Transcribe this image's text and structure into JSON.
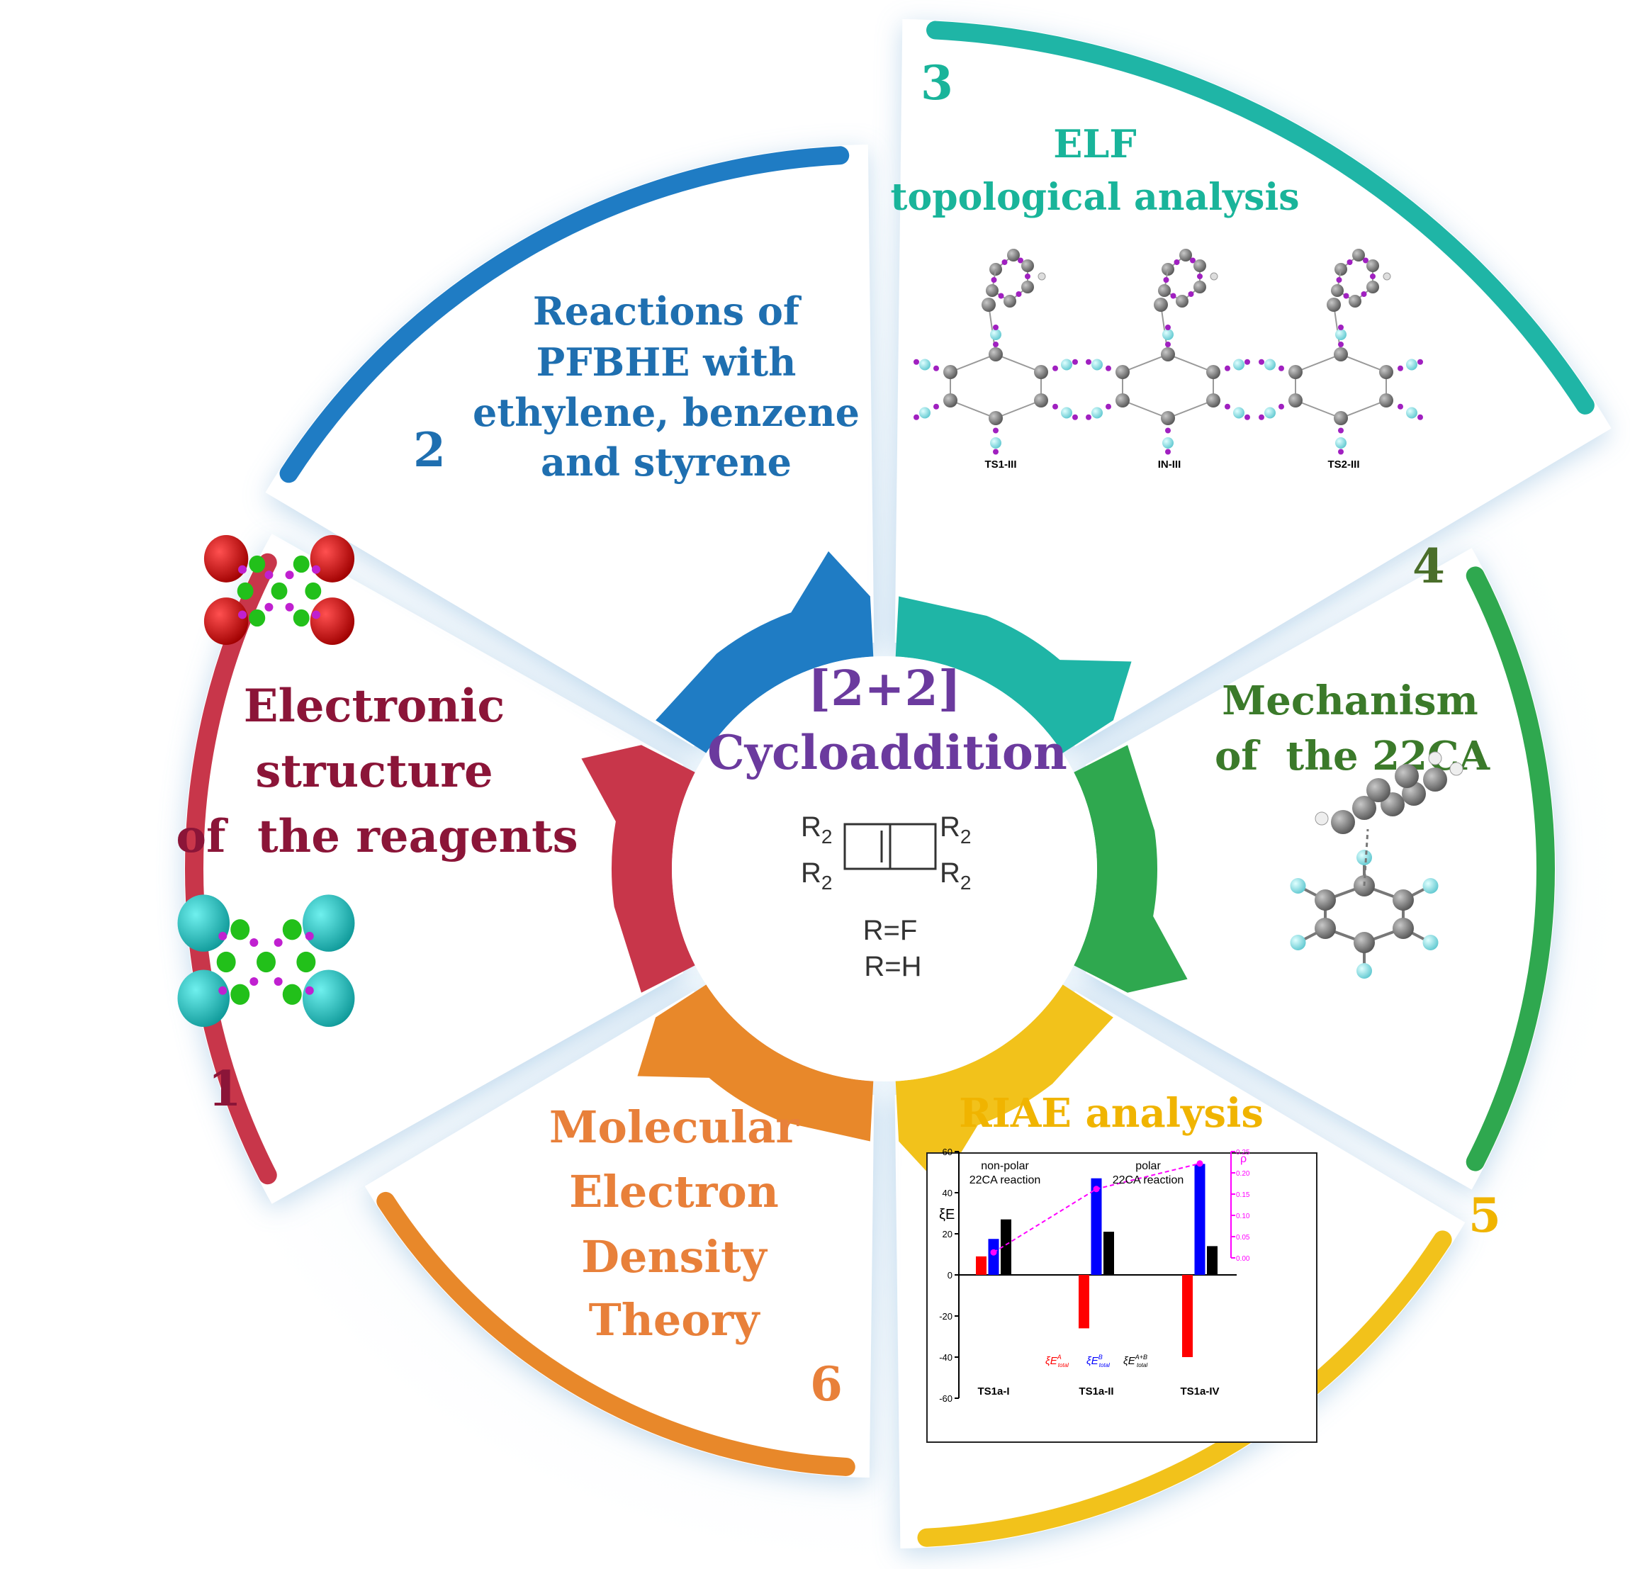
{
  "center": {
    "title_line1": "[2+2]",
    "title_line2": "Cycloaddition",
    "substituent_label": "R",
    "substituent_subscript": "2",
    "variants": [
      "R=F",
      "R=H"
    ],
    "title_color": "#6b3a9e"
  },
  "sectors": [
    {
      "number": "1",
      "lines": [
        "Electronic",
        "structure",
        "of  the reagents"
      ],
      "color": "#c8364a",
      "text_color": "#8b1538"
    },
    {
      "number": "2",
      "lines": [
        "Reactions of",
        "PFBHE with",
        "ethylene, benzene",
        "and styrene"
      ],
      "color": "#1f7cc4",
      "text_color": "#1f6fb0"
    },
    {
      "number": "3",
      "lines": [
        "ELF",
        "topological analysis"
      ],
      "color": "#1fb5a6",
      "text_color": "#19b49a",
      "structures": [
        "TS1-III",
        "IN-III",
        "TS2-III"
      ]
    },
    {
      "number": "4",
      "lines": [
        "Mechanism",
        "of  the 22CA"
      ],
      "color": "#2fa84f",
      "text_color": "#3b7a2a"
    },
    {
      "number": "5",
      "lines": [
        "RIAE analysis"
      ],
      "color": "#f2c21b",
      "text_color": "#f0b400"
    },
    {
      "number": "6",
      "lines": [
        "Molecular",
        "Electron",
        "Density",
        "Theory"
      ],
      "color": "#e8882a",
      "text_color": "#e8803a"
    }
  ],
  "chart_data": {
    "type": "bar",
    "categories": [
      "TS1a-I",
      "TS1a-II",
      "TS1a-IV"
    ],
    "ylabel": "ξE",
    "ylim": [
      -60,
      60
    ],
    "yticks": [
      "60",
      "40",
      "20",
      "0",
      "-20",
      "-40",
      "-60"
    ],
    "series": [
      {
        "name": "ξE^A_total",
        "base": "ξE",
        "sup": "A",
        "sub": "total",
        "color": "#ff0000",
        "values": [
          9,
          -26,
          -40
        ]
      },
      {
        "name": "ξE^B_total",
        "base": "ξE",
        "sup": "B",
        "sub": "total",
        "color": "#0000ff",
        "values": [
          17.5,
          47,
          54
        ]
      },
      {
        "name": "ξE^A+B_total",
        "base": "ξE",
        "sup": "A+B",
        "sub": "total",
        "color": "#000000",
        "values": [
          27,
          21,
          14
        ]
      }
    ],
    "secondary_axis": {
      "label": "ρ",
      "ylim": [
        0,
        0.25
      ],
      "yticks": [
        "0.25",
        "0.20",
        "0.15",
        "0.10",
        "0.05",
        "0.00"
      ],
      "color": "#ff00ff",
      "values": [
        0.013,
        0.162,
        0.222
      ],
      "style": "dashed line with markers"
    },
    "annotations": [
      {
        "lines": [
          "non-polar",
          "22CA reaction"
        ]
      },
      {
        "lines": [
          "polar",
          "22CA reaction"
        ]
      }
    ]
  }
}
